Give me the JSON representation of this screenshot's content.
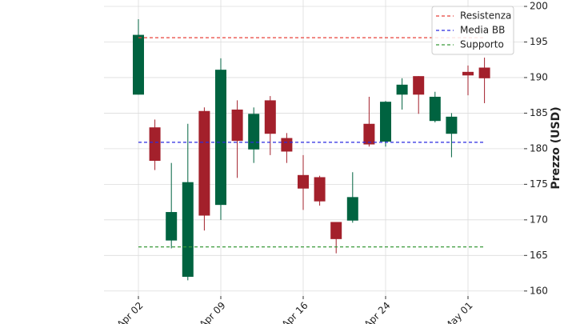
{
  "chart_data": {
    "type": "candlestick",
    "y_axis_label": "Prezzo (USD)",
    "categories": [
      "Apr 02",
      null,
      null,
      null,
      null,
      "Apr 09",
      null,
      null,
      null,
      null,
      "Apr 16",
      null,
      null,
      null,
      null,
      "Apr 24",
      null,
      null,
      null,
      null,
      "May 01",
      null
    ],
    "open": [
      187.6,
      183.0,
      167.1,
      162.0,
      185.3,
      172.1,
      185.5,
      179.9,
      186.8,
      181.5,
      176.3,
      176.0,
      169.7,
      169.9,
      183.5,
      181.0,
      187.6,
      190.2,
      183.9,
      182.1,
      190.8,
      191.4
    ],
    "high": [
      198.2,
      184.1,
      178.0,
      183.5,
      185.8,
      192.7,
      186.8,
      185.8,
      187.4,
      182.2,
      179.1,
      176.2,
      169.7,
      176.7,
      187.3,
      186.7,
      189.9,
      190.2,
      188.0,
      185.0,
      191.7,
      192.8
    ],
    "low": [
      187.6,
      177.0,
      166.0,
      161.5,
      168.5,
      170.0,
      175.9,
      178.0,
      179.1,
      178.0,
      171.4,
      172.0,
      165.3,
      169.6,
      180.3,
      180.3,
      185.5,
      184.9,
      183.7,
      178.8,
      187.5,
      186.4
    ],
    "close": [
      196.0,
      178.3,
      171.1,
      175.3,
      170.6,
      191.1,
      181.1,
      184.9,
      182.1,
      179.6,
      174.4,
      172.6,
      167.3,
      173.2,
      180.6,
      186.6,
      189.0,
      187.6,
      187.3,
      184.5,
      190.3,
      189.9
    ],
    "up_color": "#006340",
    "down_color": "#a3202b",
    "hlines": [
      {
        "name": "Resistenza",
        "value": 195.6,
        "color": "#e8413a"
      },
      {
        "name": "Media BB",
        "value": 180.9,
        "color": "#2a2ae0"
      },
      {
        "name": "Supporto",
        "value": 166.2,
        "color": "#3a9a3a"
      }
    ],
    "ylim": [
      159.3,
      200.9
    ],
    "yticks": [
      160,
      165,
      170,
      175,
      180,
      185,
      190,
      195,
      200
    ],
    "grid": true,
    "legend": "upper right"
  }
}
